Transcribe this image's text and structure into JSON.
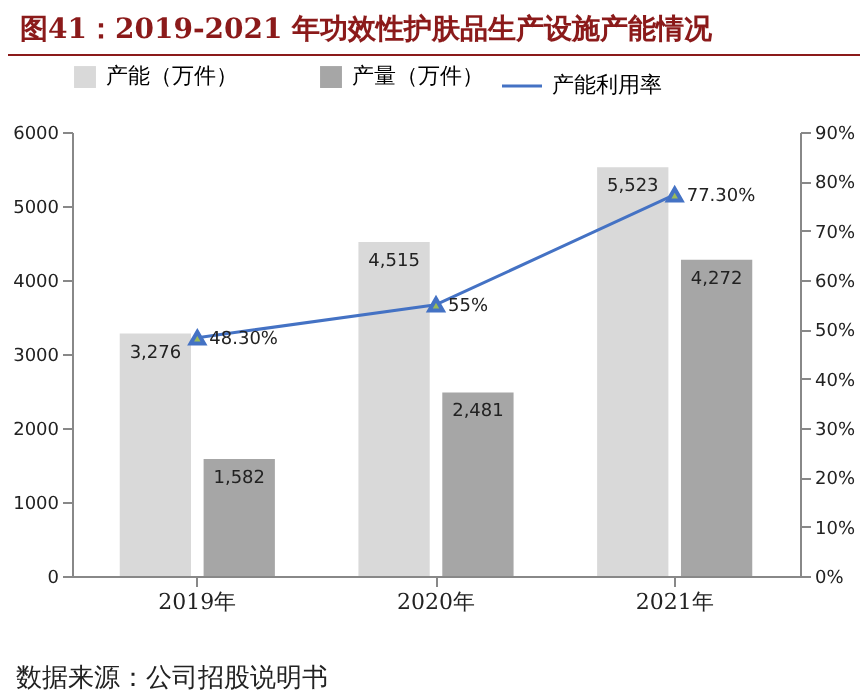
{
  "chart_data": {
    "type": "bar",
    "title": "图41：2019-2021 年功效性护肤品生产设施产能情况",
    "annotations": [
      "数据来源：公司招股说明书"
    ],
    "categories": [
      "2019年",
      "2020年",
      "2021年"
    ],
    "series": [
      {
        "name": "产能（万件）",
        "color": "#d9d9d9",
        "values": [
          3276,
          4515,
          5523
        ],
        "value_labels": [
          "3,276",
          "4,515",
          "5,523"
        ]
      },
      {
        "name": "产量（万件）",
        "color": "#a6a6a6",
        "values": [
          1582,
          2481,
          4272
        ],
        "value_labels": [
          "1,582",
          "2,481",
          "4,272"
        ]
      },
      {
        "name": "产能利用率",
        "type": "line",
        "axis": "y2",
        "color": "#4472c4",
        "values": [
          48.3,
          55,
          77.3
        ],
        "value_labels": [
          "48.30%",
          "55%",
          "77.30%"
        ]
      }
    ],
    "ylim": [
      0,
      6000
    ],
    "yticks": [
      0,
      1000,
      2000,
      3000,
      4000,
      5000,
      6000
    ],
    "y2lim": [
      0,
      90
    ],
    "y2ticks": [
      {
        "value": 0,
        "label": "0%"
      },
      {
        "value": 10,
        "label": "10%"
      },
      {
        "value": 20,
        "label": "20%"
      },
      {
        "value": 30,
        "label": "30%"
      },
      {
        "value": 40,
        "label": "40%"
      },
      {
        "value": 50,
        "label": "50%"
      },
      {
        "value": 60,
        "label": "60%"
      },
      {
        "value": 70,
        "label": "70%"
      },
      {
        "value": 80,
        "label": "80%"
      },
      {
        "value": 90,
        "label": "90%"
      }
    ],
    "grid": false,
    "legend": "top",
    "marker": "triangle",
    "line_style": "solid"
  }
}
